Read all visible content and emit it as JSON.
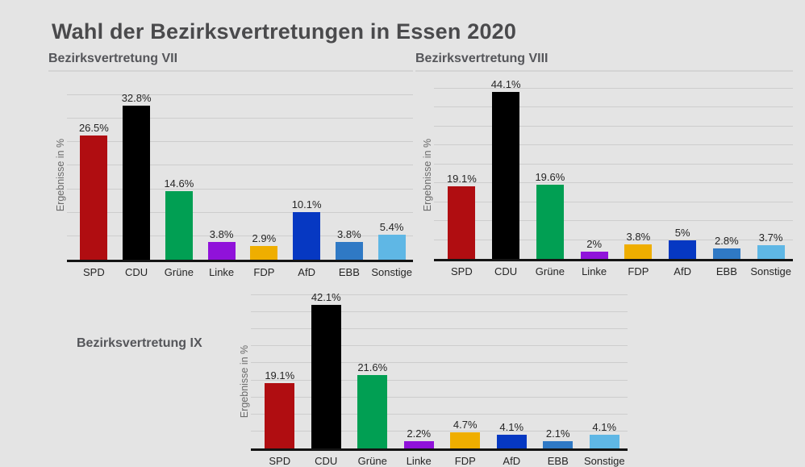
{
  "page": {
    "title": "Wahl der Bezirksvertretungen in Essen 2020",
    "background": "#e4e4e4"
  },
  "party_colors": {
    "SPD": "#b00d11",
    "CDU": "#000000",
    "Grüne": "#019f53",
    "Linke": "#9012da",
    "FDP": "#efae00",
    "AfD": "#0638c2",
    "EBB": "#2f79c5",
    "Sonstige": "#5fb7e5"
  },
  "chart_data": [
    {
      "type": "bar",
      "title": "Bezirksvertretung VII",
      "ylabel": "Ergebnisse in %",
      "categories": [
        "SPD",
        "CDU",
        "Grüne",
        "Linke",
        "FDP",
        "AfD",
        "EBB",
        "Sonstige"
      ],
      "values": [
        26.5,
        32.8,
        14.6,
        3.8,
        2.9,
        10.1,
        3.8,
        5.4
      ],
      "value_labels": [
        "26.5%",
        "32.8%",
        "14.6%",
        "3.8%",
        "2.9%",
        "10.1%",
        "3.8%",
        "5.4%"
      ],
      "colors": [
        "#b00d11",
        "#000000",
        "#019f53",
        "#9012da",
        "#efae00",
        "#0638c2",
        "#2f79c5",
        "#5fb7e5"
      ],
      "ylim": [
        0,
        35
      ],
      "grid_step": 5,
      "grid": true,
      "legend": "none"
    },
    {
      "type": "bar",
      "title": "Bezirksvertretung VIII",
      "ylabel": "Ergebnisse in %",
      "categories": [
        "SPD",
        "CDU",
        "Grüne",
        "Linke",
        "FDP",
        "AfD",
        "EBB",
        "Sonstige"
      ],
      "values": [
        19.1,
        44.1,
        19.6,
        2,
        3.8,
        5,
        2.8,
        3.7
      ],
      "value_labels": [
        "19.1%",
        "44.1%",
        "19.6%",
        "2%",
        "3.8%",
        "5%",
        "2.8%",
        "3.7%"
      ],
      "colors": [
        "#b00d11",
        "#000000",
        "#019f53",
        "#9012da",
        "#efae00",
        "#0638c2",
        "#2f79c5",
        "#5fb7e5"
      ],
      "ylim": [
        0,
        45
      ],
      "grid_step": 5,
      "grid": true,
      "legend": "none"
    },
    {
      "type": "bar",
      "title": "Bezirksvertretung IX",
      "ylabel": "Ergebnisse in %",
      "categories": [
        "SPD",
        "CDU",
        "Grüne",
        "Linke",
        "FDP",
        "AfD",
        "EBB",
        "Sonstige"
      ],
      "values": [
        19.1,
        42.1,
        21.6,
        2.2,
        4.7,
        4.1,
        2.1,
        4.1
      ],
      "value_labels": [
        "19.1%",
        "42.1%",
        "21.6%",
        "2.2%",
        "4.7%",
        "4.1%",
        "2.1%",
        "4.1%"
      ],
      "colors": [
        "#b00d11",
        "#000000",
        "#019f53",
        "#9012da",
        "#efae00",
        "#0638c2",
        "#2f79c5",
        "#5fb7e5"
      ],
      "ylim": [
        0,
        45
      ],
      "grid_step": 5,
      "grid": true,
      "legend": "none"
    }
  ]
}
